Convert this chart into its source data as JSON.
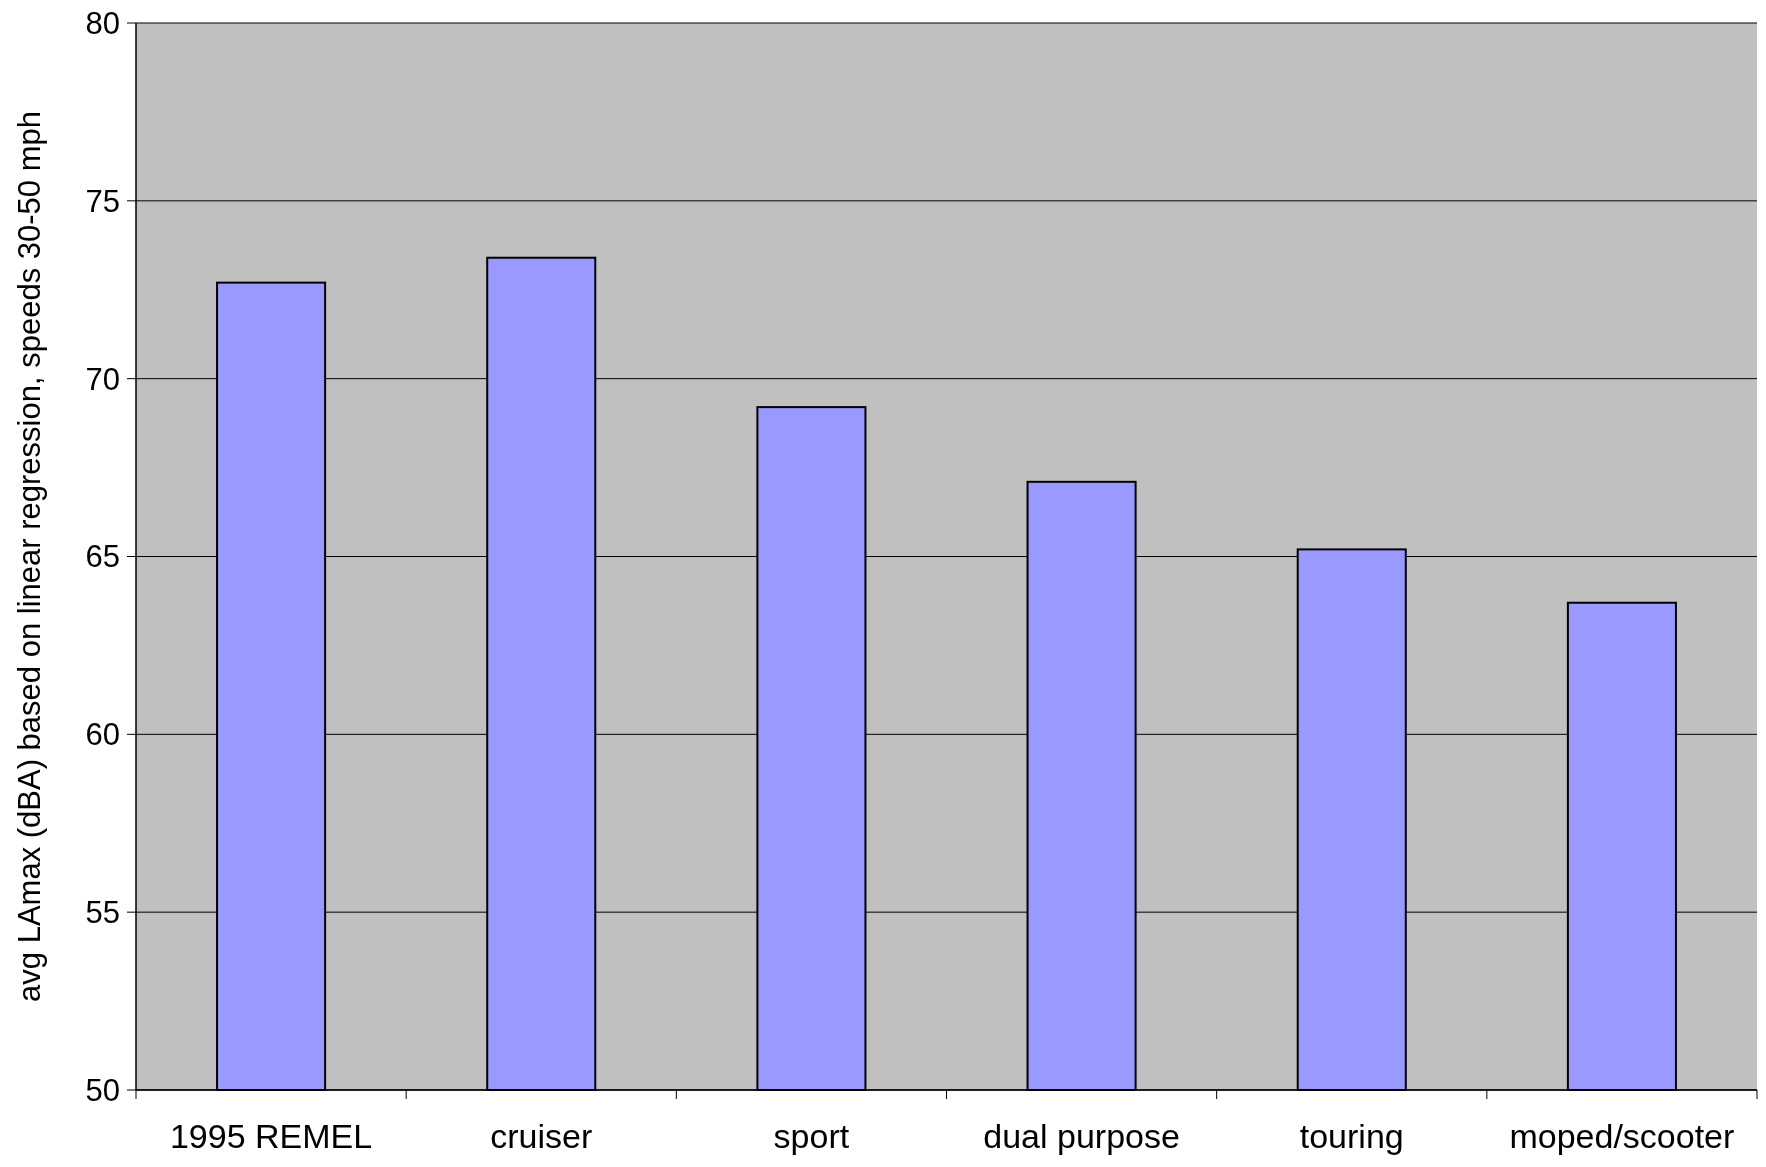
{
  "chart_data": {
    "type": "bar",
    "ylabel": "avg LAmax (dBA) based on linear regression, speeds 30-50 mph",
    "categories": [
      "1995 REMEL",
      "cruiser",
      "sport",
      "dual purpose",
      "touring",
      "moped/scooter"
    ],
    "values": [
      72.7,
      73.4,
      69.2,
      67.1,
      65.2,
      63.7
    ],
    "color": "#9999ff",
    "ylim": [
      50,
      80
    ],
    "yticks": [
      50,
      55,
      60,
      65,
      70,
      75,
      80
    ],
    "grid": "y"
  }
}
